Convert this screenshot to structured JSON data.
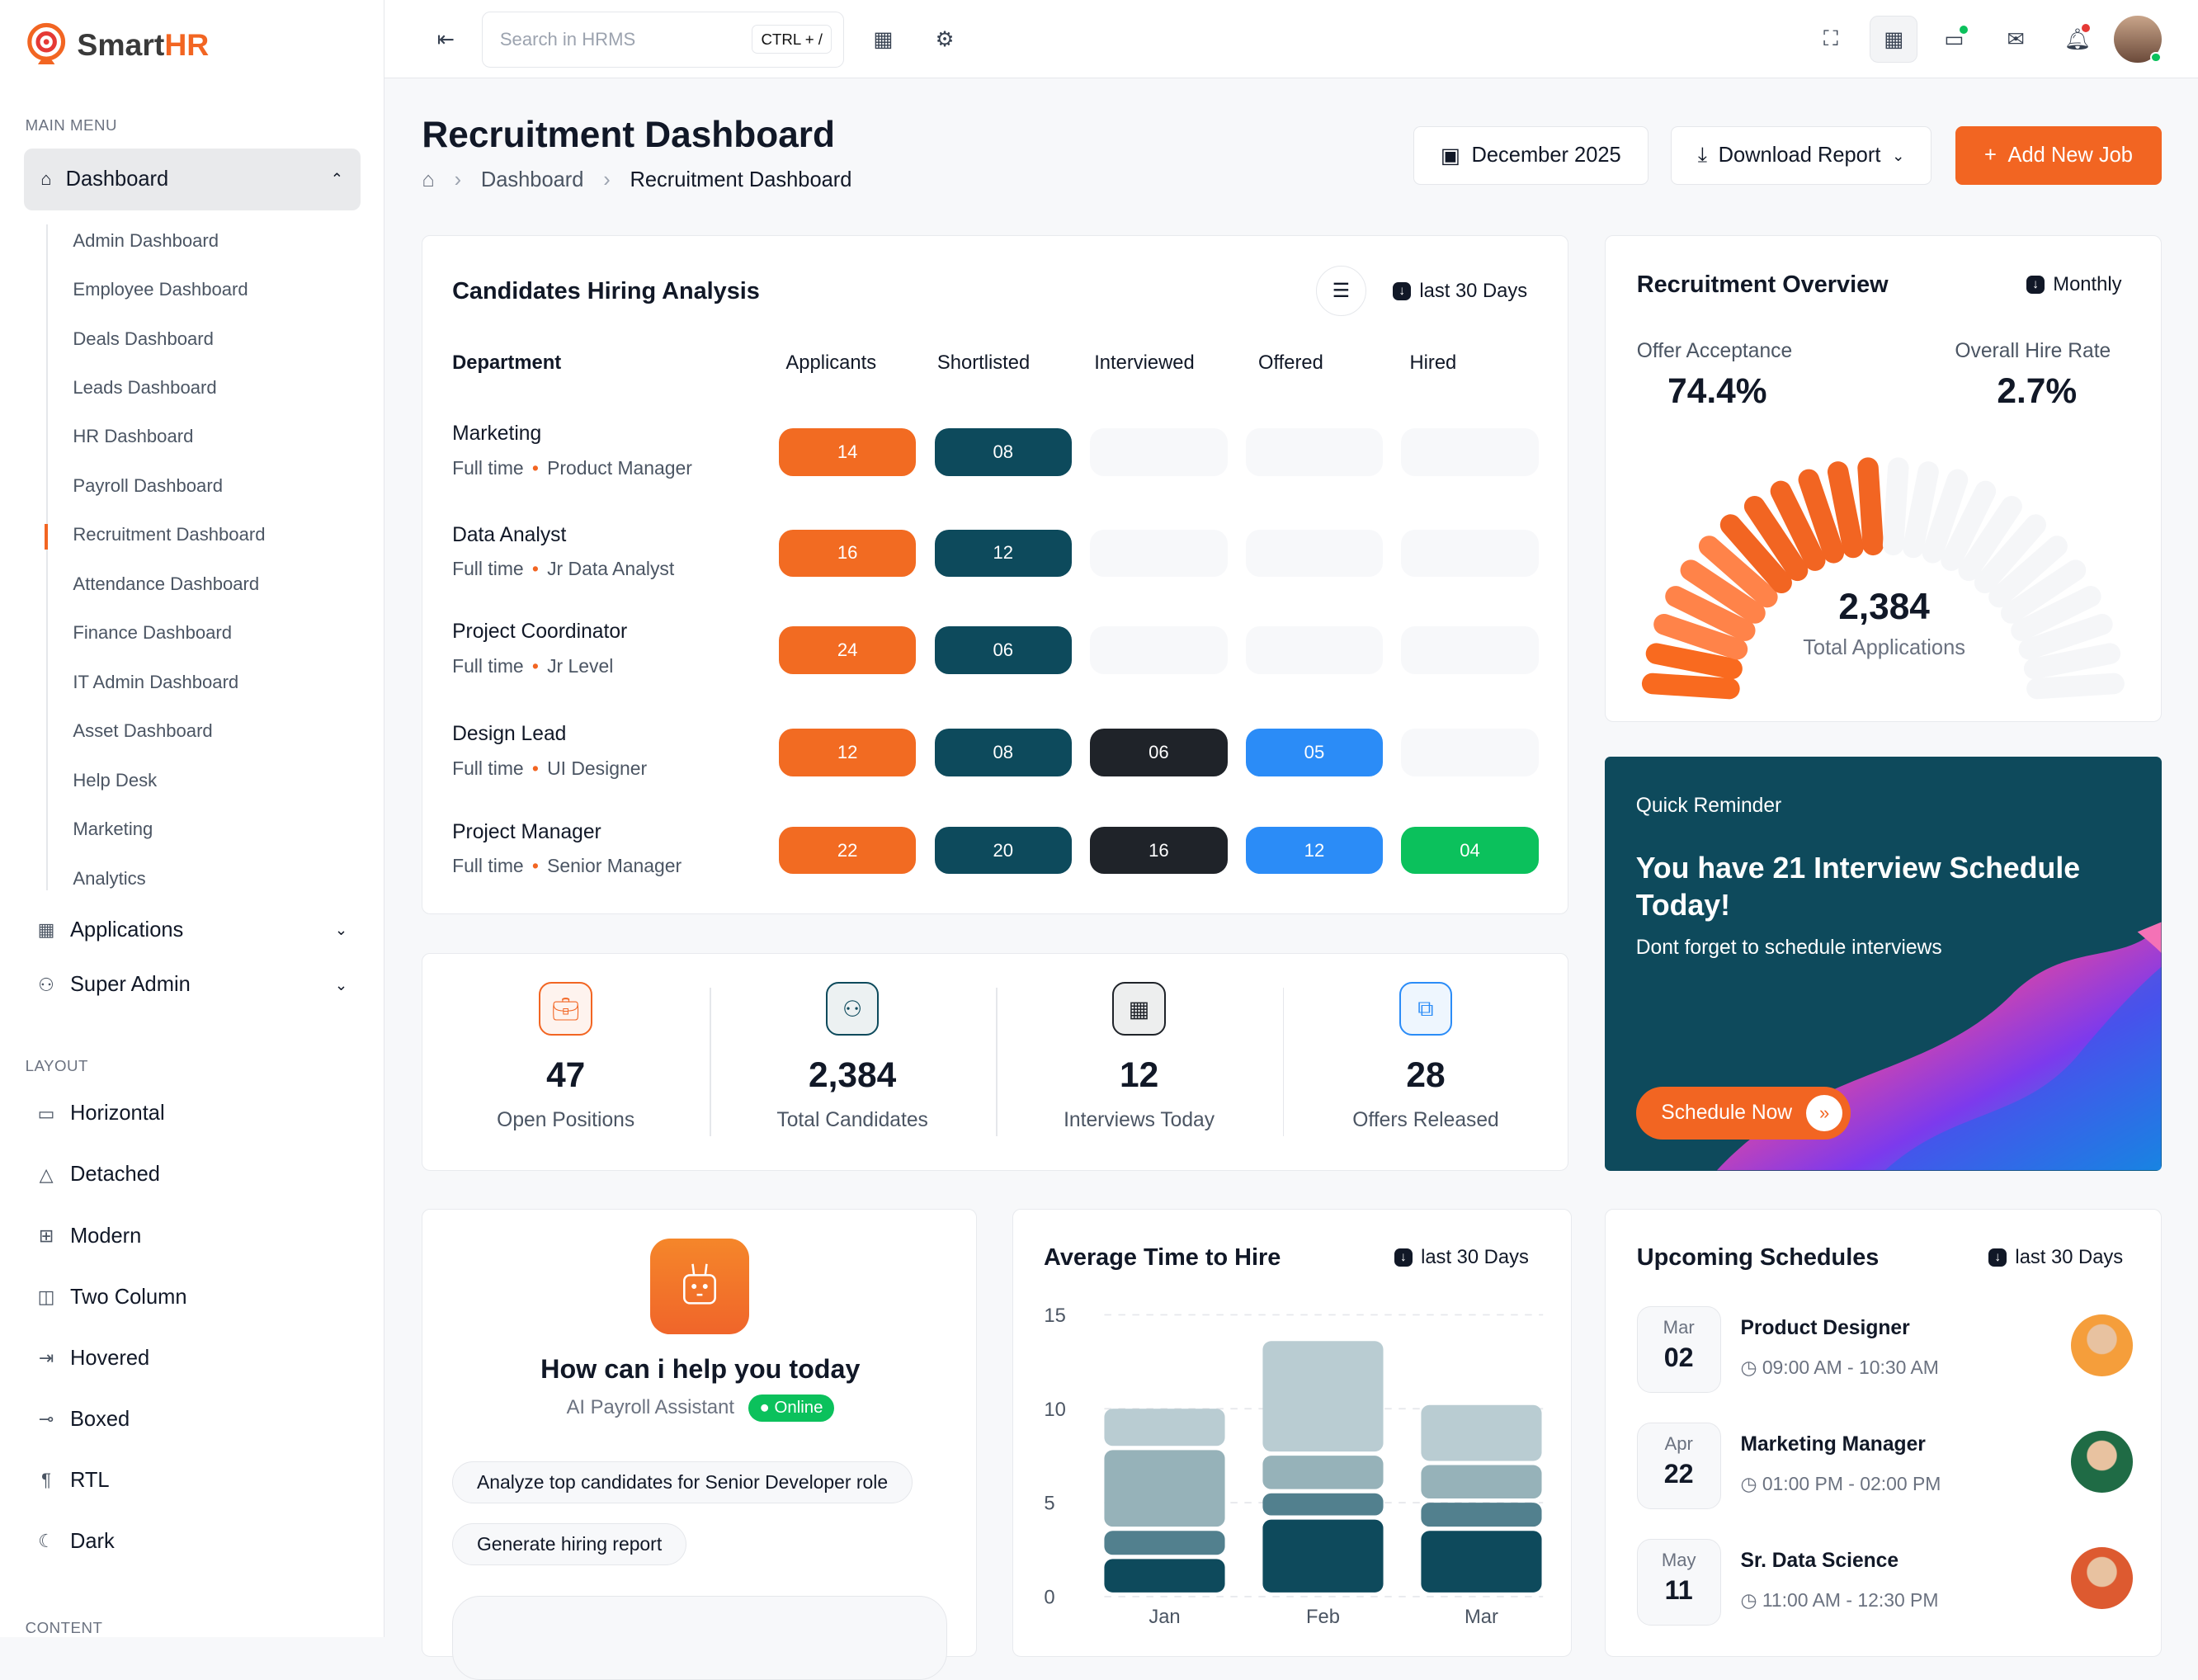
{
  "brand": {
    "name_a": "Smart",
    "name_b": "HR"
  },
  "sidebar": {
    "main_menu": "MAIN MENU",
    "dashboard": "Dashboard",
    "sub_items": [
      "Admin Dashboard",
      "Employee Dashboard",
      "Deals Dashboard",
      "Leads Dashboard",
      "HR Dashboard",
      "Payroll Dashboard",
      "Recruitment Dashboard",
      "Attendance Dashboard",
      "Finance Dashboard",
      "IT Admin Dashboard",
      "Asset Dashboard",
      "Help Desk",
      "Marketing",
      "Analytics"
    ],
    "active_sub": "Recruitment Dashboard",
    "groups": [
      {
        "label": "Applications",
        "icon": "grid-icon"
      },
      {
        "label": "Super Admin",
        "icon": "user-cog-icon"
      }
    ],
    "layout_label": "LAYOUT",
    "layout_items": [
      {
        "label": "Horizontal",
        "icon": "layout-icon"
      },
      {
        "label": "Detached",
        "icon": "triangle-icon"
      },
      {
        "label": "Modern",
        "icon": "layout-grid-icon"
      },
      {
        "label": "Two Column",
        "icon": "columns-icon"
      },
      {
        "label": "Hovered",
        "icon": "hover-icon"
      },
      {
        "label": "Boxed",
        "icon": "boxed-icon"
      },
      {
        "label": "RTL",
        "icon": "rtl-icon"
      },
      {
        "label": "Dark",
        "icon": "moon-icon"
      }
    ],
    "content_label": "CONTENT"
  },
  "topbar": {
    "search_placeholder": "Search in HRMS",
    "shortcut": "CTRL + /"
  },
  "header": {
    "title": "Recruitment Dashboard",
    "breadcrumb": [
      "Dashboard",
      "Recruitment Dashboard"
    ],
    "date": "December 2025",
    "download": "Download Report",
    "add": "Add New Job"
  },
  "hiring": {
    "title": "Candidates Hiring Analysis",
    "filter": "last 30 Days",
    "columns": [
      "Department",
      "Applicants",
      "Shortlisted",
      "Interviewed",
      "Offered",
      "Hired"
    ],
    "rows": [
      {
        "dept": "Marketing",
        "type": "Full time",
        "role": "Product Manager",
        "values": [
          "14",
          "08",
          null,
          null,
          null
        ]
      },
      {
        "dept": "Data Analyst",
        "type": "Full time",
        "role": "Jr Data Analyst",
        "values": [
          "16",
          "12",
          null,
          null,
          null
        ]
      },
      {
        "dept": "Project Coordinator",
        "type": "Full time",
        "role": "Jr Level",
        "values": [
          "24",
          "06",
          null,
          null,
          null
        ]
      },
      {
        "dept": "Design Lead",
        "type": "Full time",
        "role": "UI Designer",
        "values": [
          "12",
          "08",
          "06",
          "05",
          null
        ]
      },
      {
        "dept": "Project Manager",
        "type": "Full time",
        "role": "Senior Manager",
        "values": [
          "22",
          "20",
          "16",
          "12",
          "04"
        ]
      }
    ],
    "colors": [
      "#f26b22",
      "#0d4a5c",
      "#1f2329",
      "#2b8cf7",
      "#0bc15c"
    ]
  },
  "stats": [
    {
      "value": "47",
      "label": "Open Positions",
      "icon": "briefcase-icon",
      "color": "#f26522"
    },
    {
      "value": "2,384",
      "label": "Total Candidates",
      "icon": "users-icon",
      "color": "#0d4a5c"
    },
    {
      "value": "12",
      "label": "Interviews Today",
      "icon": "calendar-icon",
      "color": "#1f2329"
    },
    {
      "value": "28",
      "label": "Offers Released",
      "icon": "copy-icon",
      "color": "#2b8cf7"
    }
  ],
  "overview": {
    "title": "Recruitment Overview",
    "filter": "Monthly",
    "offer_label": "Offer Acceptance",
    "offer_value": "74.4%",
    "hire_label": "Overall Hire Rate",
    "hire_value": "2.7%",
    "total": "2,384",
    "total_label": "Total Applications",
    "gauge_fill": 0.5
  },
  "reminder": {
    "kicker": "Quick Reminder",
    "headline": "You have 21 Interview Schedule Today!",
    "sub": "Dont forget to schedule interviews",
    "cta": "Schedule Now"
  },
  "assistant": {
    "title": "How can i help you today",
    "subtitle": "AI Payroll Assistant",
    "status": "Online",
    "suggestions": [
      "Analyze top candidates for Senior Developer role",
      "Generate hiring report"
    ]
  },
  "chart_data": {
    "type": "bar",
    "stacked": true,
    "title": "Average Time to Hire",
    "filter": "last 30 Days",
    "categories": [
      "Jan",
      "Feb",
      "Mar"
    ],
    "series": [
      {
        "values": [
          2,
          4.1,
          3.5
        ],
        "color": "#0e4a5c"
      },
      {
        "values": [
          1.5,
          1.4,
          1.5
        ],
        "color": "#52808e"
      },
      {
        "values": [
          4.3,
          2,
          2
        ],
        "color": "#96b2b9"
      },
      {
        "values": [
          2.2,
          6.1,
          3.2
        ],
        "color": "#b9ccd2"
      }
    ],
    "ylim": [
      0,
      15
    ],
    "yticks": [
      0,
      5,
      10,
      15
    ],
    "grid": true
  },
  "schedules": {
    "title": "Upcoming Schedules",
    "filter": "last 30 Days",
    "items": [
      {
        "month": "Mar",
        "day": "02",
        "title": "Product Designer",
        "time": "09:00 AM - 10:30 AM",
        "avatar_color": "#f59e3b"
      },
      {
        "month": "Apr",
        "day": "22",
        "title": "Marketing Manager",
        "time": "01:00 PM - 02:00 PM",
        "avatar_color": "#1f6b45"
      },
      {
        "month": "May",
        "day": "11",
        "title": "Sr. Data Science",
        "time": "11:00 AM - 12:30 PM",
        "avatar_color": "#dd5a30"
      }
    ]
  }
}
